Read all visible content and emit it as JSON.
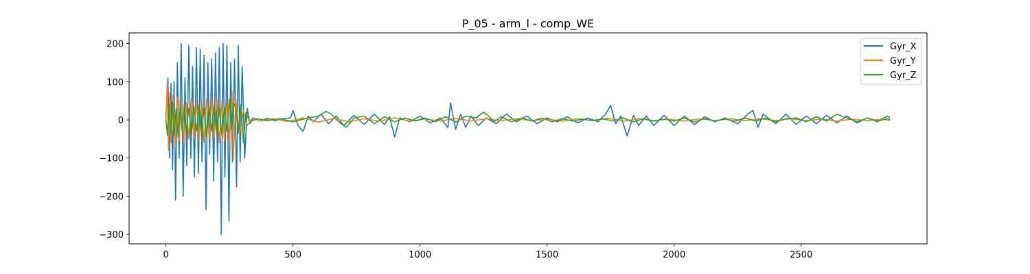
{
  "chart_data": {
    "type": "line",
    "title": "P_05 - arm_l - comp_WE",
    "xlabel": "",
    "ylabel": "",
    "xlim": [
      -145,
      2995
    ],
    "ylim": [
      -325,
      228
    ],
    "x_ticks": [
      0,
      500,
      1000,
      1500,
      2000,
      2500
    ],
    "y_ticks": [
      -300,
      -200,
      -100,
      0,
      100,
      200
    ],
    "x_tick_labels": [
      "0",
      "500",
      "1000",
      "1500",
      "2000",
      "2500"
    ],
    "y_tick_labels": [
      "−300",
      "−200",
      "−100",
      "0",
      "100",
      "200"
    ],
    "grid": false,
    "legend_position": "top-right",
    "series": [
      {
        "name": "Gyr_X",
        "color": "#1f77b4",
        "x": [
          0,
          8,
          14,
          20,
          26,
          32,
          38,
          45,
          52,
          60,
          68,
          75,
          82,
          90,
          98,
          105,
          112,
          120,
          128,
          135,
          142,
          150,
          158,
          165,
          172,
          180,
          188,
          195,
          203,
          210,
          218,
          225,
          232,
          240,
          248,
          255,
          262,
          270,
          278,
          285,
          292,
          300,
          310,
          320,
          330,
          345,
          370,
          400,
          430,
          460,
          490,
          500,
          520,
          540,
          560,
          580,
          610,
          640,
          670,
          700,
          740,
          780,
          820,
          860,
          880,
          900,
          920,
          960,
          1000,
          1040,
          1080,
          1110,
          1120,
          1140,
          1160,
          1180,
          1200,
          1230,
          1260,
          1300,
          1340,
          1380,
          1420,
          1460,
          1500,
          1540,
          1580,
          1620,
          1660,
          1700,
          1730,
          1750,
          1770,
          1790,
          1815,
          1840,
          1860,
          1890,
          1920,
          1960,
          2000,
          2040,
          2080,
          2120,
          2160,
          2200,
          2250,
          2290,
          2310,
          2330,
          2350,
          2400,
          2440,
          2480,
          2520,
          2560,
          2600,
          2640,
          2680,
          2720,
          2760,
          2800,
          2840,
          2850
        ],
        "y": [
          5,
          110,
          -100,
          95,
          -130,
          100,
          -210,
          150,
          -100,
          200,
          -200,
          110,
          -120,
          195,
          -100,
          140,
          -150,
          190,
          -140,
          185,
          -110,
          170,
          -235,
          150,
          -90,
          160,
          -160,
          175,
          -110,
          190,
          -300,
          200,
          -150,
          195,
          -265,
          150,
          -110,
          160,
          -175,
          195,
          -110,
          140,
          -100,
          30,
          -10,
          5,
          -3,
          4,
          -2,
          3,
          5,
          25,
          -15,
          -30,
          10,
          -5,
          15,
          -10,
          10,
          -15,
          12,
          -12,
          15,
          -12,
          8,
          -45,
          5,
          -5,
          10,
          -8,
          5,
          -20,
          45,
          -25,
          15,
          -20,
          10,
          -15,
          5,
          -10,
          15,
          -5,
          10,
          -10,
          5,
          -5,
          8,
          -8,
          5,
          -5,
          15,
          38,
          -10,
          10,
          -42,
          12,
          -15,
          10,
          -15,
          12,
          -15,
          10,
          -12,
          8,
          -5,
          5,
          -10,
          15,
          25,
          -20,
          15,
          -10,
          15,
          -12,
          10,
          -10,
          12,
          -8,
          10,
          -8,
          5,
          -5,
          10,
          5
        ]
      },
      {
        "name": "Gyr_Y",
        "color": "#ff7f0e",
        "x": [
          0,
          5,
          10,
          15,
          20,
          28,
          36,
          44,
          52,
          60,
          70,
          80,
          90,
          100,
          110,
          120,
          130,
          140,
          150,
          160,
          170,
          180,
          190,
          200,
          210,
          220,
          230,
          240,
          250,
          260,
          265,
          275,
          290,
          305,
          320,
          340,
          370,
          420,
          480,
          540,
          600,
          660,
          720,
          780,
          840,
          900,
          960,
          1020,
          1080,
          1140,
          1200,
          1260,
          1320,
          1380,
          1440,
          1500,
          1560,
          1620,
          1680,
          1740,
          1800,
          1860,
          1920,
          1980,
          2040,
          2100,
          2160,
          2220,
          2280,
          2340,
          2400,
          2460,
          2520,
          2580,
          2640,
          2700,
          2760,
          2820,
          2850
        ],
        "y": [
          0,
          95,
          -80,
          70,
          -60,
          65,
          -70,
          60,
          -55,
          50,
          -60,
          45,
          -50,
          55,
          -45,
          50,
          -55,
          45,
          -60,
          55,
          -50,
          60,
          -45,
          55,
          -60,
          50,
          -55,
          45,
          -60,
          75,
          -105,
          55,
          -40,
          25,
          -15,
          5,
          -3,
          3,
          -4,
          5,
          -6,
          4,
          -5,
          3,
          -4,
          5,
          -3,
          2,
          -3,
          4,
          -3,
          3,
          -2,
          3,
          -2,
          2,
          -3,
          3,
          -2,
          4,
          -3,
          3,
          -2,
          2,
          -3,
          3,
          -2,
          3,
          -2,
          3,
          -2,
          3,
          -2,
          2,
          -3,
          2,
          -2,
          2,
          -2
        ]
      },
      {
        "name": "Gyr_Z",
        "color": "#2ca02c",
        "x": [
          0,
          6,
          12,
          18,
          25,
          32,
          40,
          48,
          56,
          64,
          72,
          80,
          90,
          100,
          110,
          120,
          130,
          140,
          150,
          160,
          170,
          180,
          190,
          200,
          210,
          220,
          230,
          240,
          250,
          258,
          266,
          275,
          285,
          295,
          305,
          315,
          330,
          360,
          400,
          450,
          500,
          560,
          600,
          630,
          650,
          680,
          710,
          740,
          780,
          820,
          860,
          900,
          940,
          980,
          1020,
          1060,
          1100,
          1140,
          1180,
          1220,
          1250,
          1270,
          1290,
          1320,
          1360,
          1400,
          1440,
          1480,
          1520,
          1560,
          1600,
          1640,
          1680,
          1720,
          1760,
          1800,
          1840,
          1880,
          1920,
          1960,
          2000,
          2040,
          2080,
          2120,
          2160,
          2200,
          2240,
          2280,
          2320,
          2360,
          2400,
          2440,
          2480,
          2520,
          2560,
          2600,
          2640,
          2680,
          2720,
          2760,
          2800,
          2840,
          2850
        ],
        "y": [
          0,
          -40,
          40,
          -35,
          45,
          -40,
          30,
          -45,
          35,
          -30,
          40,
          -35,
          30,
          -40,
          35,
          -30,
          40,
          -35,
          30,
          -45,
          35,
          -30,
          40,
          -35,
          30,
          -40,
          35,
          -30,
          55,
          -25,
          45,
          30,
          -35,
          40,
          -60,
          20,
          -5,
          3,
          -2,
          3,
          -5,
          5,
          10,
          22,
          15,
          -5,
          -20,
          5,
          10,
          -10,
          8,
          -5,
          5,
          -3,
          5,
          -5,
          8,
          -6,
          10,
          5,
          20,
          10,
          -5,
          8,
          -5,
          5,
          -3,
          5,
          -5,
          3,
          -3,
          2,
          -2,
          3,
          -3,
          5,
          -5,
          3,
          -3,
          2,
          -3,
          5,
          -5,
          3,
          -3,
          2,
          -3,
          5,
          -3,
          5,
          -5,
          3,
          5,
          -5,
          8,
          -3,
          15,
          5,
          -5,
          5,
          -3,
          3,
          0
        ]
      }
    ]
  }
}
